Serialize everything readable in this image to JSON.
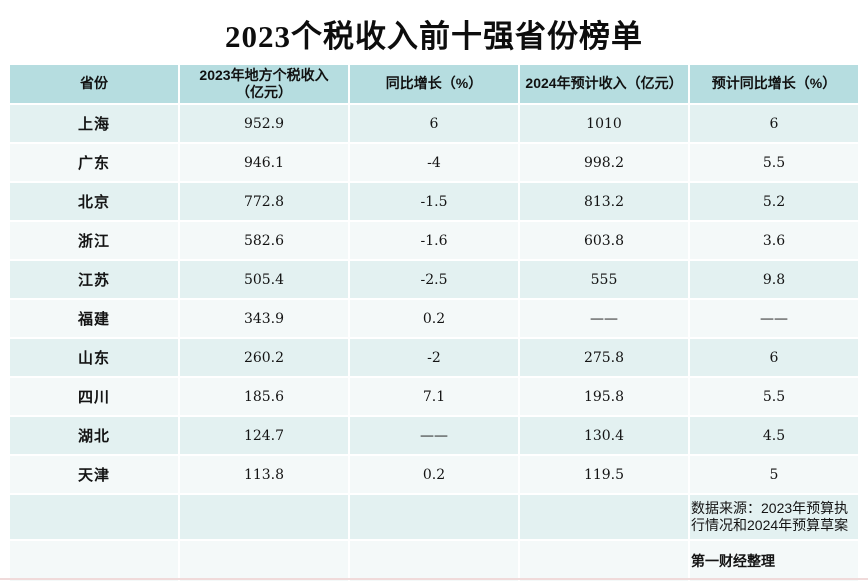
{
  "page": {
    "title": "2023个税收入前十强省份榜单"
  },
  "colors": {
    "header_bg": "#b6dde0",
    "row_odd_bg": "#e3f1f1",
    "row_even_bg": "#f4f9f9",
    "page_bg": "#ffffff",
    "text": "#141414",
    "bottom_accent_line": "#f0dada"
  },
  "table": {
    "headers": [
      "省份",
      "2023年地方个税收入\n（亿元）",
      "同比增长（%）",
      "2024年预计收入（亿元）",
      "预计同比增长（%）"
    ],
    "rows": [
      [
        "上海",
        "952.9",
        "6",
        "1010",
        "6"
      ],
      [
        "广东",
        "946.1",
        "-4",
        "998.2",
        "5.5"
      ],
      [
        "北京",
        "772.8",
        "-1.5",
        "813.2",
        "5.2"
      ],
      [
        "浙江",
        "582.6",
        "-1.6",
        "603.8",
        "3.6"
      ],
      [
        "江苏",
        "505.4",
        "-2.5",
        "555",
        "9.8"
      ],
      [
        "福建",
        "343.9",
        "0.2",
        "——",
        "——"
      ],
      [
        "山东",
        "260.2",
        "-2",
        "275.8",
        "6"
      ],
      [
        "四川",
        "185.6",
        "7.1",
        "195.8",
        "5.5"
      ],
      [
        "湖北",
        "124.7",
        "——",
        "130.4",
        "4.5"
      ],
      [
        "天津",
        "113.8",
        "0.2",
        "119.5",
        "5"
      ]
    ],
    "note_rows": [
      {
        "text": "数据来源：2023年预算执行情况和2024年预算草案",
        "bold": false
      },
      {
        "text": "第一财经整理",
        "bold": true
      }
    ]
  },
  "chart_data": {
    "type": "table",
    "title": "2023个税收入前十强省份榜单",
    "columns": [
      "省份",
      "2023年地方个税收入（亿元）",
      "同比增长（%）",
      "2024年预计收入（亿元）",
      "预计同比增长（%）"
    ],
    "rows": [
      {
        "province": "上海",
        "income_2023": 952.9,
        "yoy_growth_pct": 6,
        "est_income_2024": 1010,
        "est_yoy_growth_pct": 6
      },
      {
        "province": "广东",
        "income_2023": 946.1,
        "yoy_growth_pct": -4,
        "est_income_2024": 998.2,
        "est_yoy_growth_pct": 5.5
      },
      {
        "province": "北京",
        "income_2023": 772.8,
        "yoy_growth_pct": -1.5,
        "est_income_2024": 813.2,
        "est_yoy_growth_pct": 5.2
      },
      {
        "province": "浙江",
        "income_2023": 582.6,
        "yoy_growth_pct": -1.6,
        "est_income_2024": 603.8,
        "est_yoy_growth_pct": 3.6
      },
      {
        "province": "江苏",
        "income_2023": 505.4,
        "yoy_growth_pct": -2.5,
        "est_income_2024": 555,
        "est_yoy_growth_pct": 9.8
      },
      {
        "province": "福建",
        "income_2023": 343.9,
        "yoy_growth_pct": 0.2,
        "est_income_2024": null,
        "est_yoy_growth_pct": null
      },
      {
        "province": "山东",
        "income_2023": 260.2,
        "yoy_growth_pct": -2,
        "est_income_2024": 275.8,
        "est_yoy_growth_pct": 6
      },
      {
        "province": "四川",
        "income_2023": 185.6,
        "yoy_growth_pct": 7.1,
        "est_income_2024": 195.8,
        "est_yoy_growth_pct": 5.5
      },
      {
        "province": "湖北",
        "income_2023": 124.7,
        "yoy_growth_pct": null,
        "est_income_2024": 130.4,
        "est_yoy_growth_pct": 4.5
      },
      {
        "province": "天津",
        "income_2023": 113.8,
        "yoy_growth_pct": 0.2,
        "est_income_2024": 119.5,
        "est_yoy_growth_pct": 5
      }
    ],
    "missing_value_marker": "——",
    "source": "数据来源：2023年预算执行情况和2024年预算草案",
    "credit": "第一财经整理"
  }
}
